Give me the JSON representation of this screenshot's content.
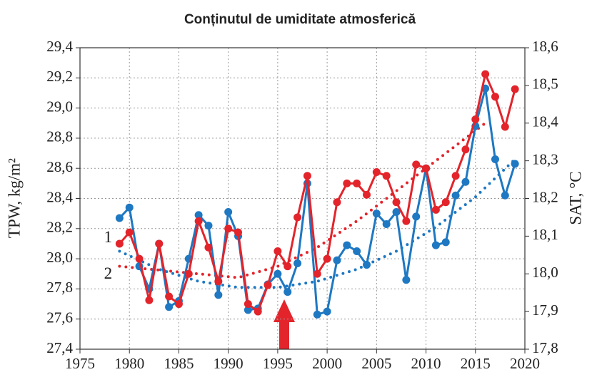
{
  "chart_data": {
    "type": "line",
    "title": "Conținutul de umiditate atmosferică",
    "ylabel": "TPW,  kg/m²",
    "y2label": "SAT, °C",
    "x": [
      1979,
      1980,
      1981,
      1982,
      1983,
      1984,
      1985,
      1986,
      1987,
      1988,
      1989,
      1990,
      1991,
      1992,
      1993,
      1994,
      1995,
      1996,
      1997,
      1998,
      1999,
      2000,
      2001,
      2002,
      2003,
      2004,
      2005,
      2006,
      2007,
      2008,
      2009,
      2010,
      2011,
      2012,
      2013,
      2014,
      2015,
      2016,
      2017,
      2018,
      2019
    ],
    "series": [
      {
        "name": "1",
        "color": "#1e78c2",
        "axis": "y",
        "values": [
          28.27,
          28.34,
          27.95,
          27.8,
          28.1,
          27.68,
          27.72,
          28.0,
          28.29,
          28.22,
          27.76,
          28.31,
          28.15,
          27.66,
          27.67,
          27.83,
          27.9,
          27.78,
          27.97,
          28.5,
          27.63,
          27.65,
          27.99,
          28.09,
          28.05,
          27.96,
          28.3,
          28.23,
          28.31,
          27.86,
          28.28,
          28.6,
          28.09,
          28.11,
          28.42,
          28.51,
          28.88,
          29.13,
          28.66,
          28.42,
          28.63
        ],
        "trend_x": [
          1979,
          1983,
          1987,
          1991,
          1995,
          1999,
          2003,
          2007,
          2011,
          2015,
          2019
        ],
        "trend_values": [
          28.05,
          27.93,
          27.85,
          27.81,
          27.81,
          27.85,
          27.93,
          28.05,
          28.21,
          28.41,
          28.66
        ]
      },
      {
        "name": "2",
        "color": "#e3242b",
        "axis": "y2",
        "values": [
          18.08,
          18.11,
          18.04,
          17.93,
          18.08,
          17.94,
          17.92,
          18.0,
          18.14,
          18.07,
          17.98,
          18.12,
          18.11,
          17.92,
          17.9,
          17.97,
          18.06,
          18.02,
          18.15,
          18.26,
          18.0,
          18.04,
          18.19,
          18.24,
          18.24,
          18.21,
          18.27,
          18.26,
          18.19,
          18.14,
          18.29,
          18.28,
          18.17,
          18.19,
          18.26,
          18.33,
          18.41,
          18.53,
          18.47,
          18.39,
          18.49
        ],
        "trend_x": [
          1979,
          1983,
          1987,
          1991,
          1995,
          1999,
          2003,
          2007,
          2011,
          2015,
          2016
        ],
        "trend_values": [
          18.02,
          18.01,
          18.0,
          17.99,
          18.02,
          18.07,
          18.14,
          18.22,
          18.3,
          18.38,
          18.4
        ]
      }
    ],
    "xlim": [
      1975,
      2020
    ],
    "xticks": [
      1975,
      1980,
      1985,
      1990,
      1995,
      2000,
      2005,
      2010,
      2015,
      2020
    ],
    "ylim": [
      27.4,
      29.4
    ],
    "yticks": [
      {
        "value": 27.4,
        "label": "27,4"
      },
      {
        "value": 27.6,
        "label": "27,6"
      },
      {
        "value": 27.8,
        "label": "27,8"
      },
      {
        "value": 28.0,
        "label": "28,0"
      },
      {
        "value": 28.2,
        "label": "28,2"
      },
      {
        "value": 28.4,
        "label": "28,4"
      },
      {
        "value": 28.6,
        "label": "28,6"
      },
      {
        "value": 28.8,
        "label": "28,8"
      },
      {
        "value": 29.0,
        "label": "29,0"
      },
      {
        "value": 29.2,
        "label": "29,2"
      },
      {
        "value": 29.4,
        "label": "29,4"
      }
    ],
    "y2lim": [
      17.8,
      18.6
    ],
    "y2ticks": [
      {
        "value": 17.8,
        "label": "17,8"
      },
      {
        "value": 17.9,
        "label": "17,9"
      },
      {
        "value": 18.0,
        "label": "18,0"
      },
      {
        "value": 18.1,
        "label": "18,1"
      },
      {
        "value": 18.2,
        "label": "18,2"
      },
      {
        "value": 18.3,
        "label": "18,3"
      },
      {
        "value": 18.4,
        "label": "18,4"
      },
      {
        "value": 18.5,
        "label": "18,5"
      },
      {
        "value": 18.6,
        "label": "18,6"
      }
    ],
    "grid": true
  }
}
